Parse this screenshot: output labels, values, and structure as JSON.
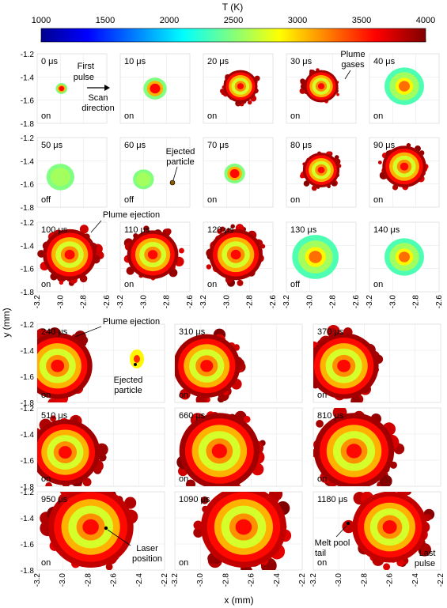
{
  "chart_data": {
    "type": "heatmap",
    "colorbar": {
      "label": "T (K)",
      "min": 1000,
      "max": 4000,
      "ticks": [
        1000,
        1500,
        2000,
        2500,
        3000,
        3500,
        4000
      ],
      "colormap": "jet"
    },
    "xlabel": "x (mm)",
    "ylabel": "y (mm)",
    "grid": true,
    "top_block": {
      "xlim": [
        -3.2,
        -2.6
      ],
      "xticks": [
        "-3.2",
        "-3.0",
        "-2.8",
        "-2.6"
      ],
      "ylim": [
        -1.8,
        -1.2
      ],
      "yticks": [
        "-1.2",
        "-1.4",
        "-1.6",
        "-1.8"
      ]
    },
    "bottom_block": {
      "xlim": [
        -3.2,
        -2.2
      ],
      "xticks": [
        "-3.2",
        "-3.0",
        "-2.8",
        "-2.6",
        "-2.4",
        "-2.2"
      ],
      "ylim": [
        -1.8,
        -1.2
      ],
      "yticks": [
        "-1.2",
        "-1.4",
        "-1.6",
        "-1.8"
      ]
    },
    "frames": [
      {
        "time": "0 μs",
        "laser": "on",
        "kind": "small",
        "cx": -2.99,
        "cy": -1.5,
        "r": 0.05,
        "peak": 3700
      },
      {
        "time": "10 μs",
        "laser": "on",
        "kind": "small",
        "cx": -2.9,
        "cy": -1.5,
        "r": 0.1,
        "peak": 3800
      },
      {
        "time": "20 μs",
        "laser": "on",
        "kind": "pool",
        "cx": -2.88,
        "cy": -1.48,
        "r": 0.14,
        "peak": 4000
      },
      {
        "time": "30 μs",
        "laser": "on",
        "kind": "pool",
        "cx": -2.9,
        "cy": -1.48,
        "r": 0.14,
        "peak": 4000
      },
      {
        "time": "40 μs",
        "laser": "on",
        "kind": "cool",
        "cx": -2.9,
        "cy": -1.48,
        "r": 0.17,
        "peak": 3500
      },
      {
        "time": "50 μs",
        "laser": "off",
        "kind": "small",
        "cx": -3.0,
        "cy": -1.54,
        "r": 0.12,
        "peak": 2600
      },
      {
        "time": "60 μs",
        "laser": "off",
        "kind": "small",
        "cx": -3.0,
        "cy": -1.56,
        "r": 0.09,
        "peak": 2600
      },
      {
        "time": "70 μs",
        "laser": "on",
        "kind": "small",
        "cx": -2.93,
        "cy": -1.51,
        "r": 0.09,
        "peak": 3800
      },
      {
        "time": "80 μs",
        "laser": "on",
        "kind": "pool",
        "cx": -2.9,
        "cy": -1.48,
        "r": 0.15,
        "peak": 4000
      },
      {
        "time": "90 μs",
        "laser": "on",
        "kind": "pool",
        "cx": -2.9,
        "cy": -1.45,
        "r": 0.18,
        "peak": 4000
      },
      {
        "time": "100 μs",
        "laser": "on",
        "kind": "pool",
        "cx": -2.92,
        "cy": -1.48,
        "r": 0.22,
        "peak": 4000
      },
      {
        "time": "110 μs",
        "laser": "on",
        "kind": "pool",
        "cx": -2.92,
        "cy": -1.48,
        "r": 0.21,
        "peak": 4000
      },
      {
        "time": "120 μs",
        "laser": "on",
        "kind": "pool",
        "cx": -2.92,
        "cy": -1.48,
        "r": 0.22,
        "peak": 4000
      },
      {
        "time": "130 μs",
        "laser": "off",
        "kind": "cool",
        "cx": -2.95,
        "cy": -1.5,
        "r": 0.2,
        "peak": 3300
      },
      {
        "time": "140 μs",
        "laser": "on",
        "kind": "cool",
        "cx": -2.9,
        "cy": -1.5,
        "r": 0.17,
        "peak": 3500
      },
      {
        "time": "240 μs",
        "laser": "on",
        "kind": "pool",
        "cx": -3.04,
        "cy": -1.52,
        "r": 0.26,
        "peak": 4000
      },
      {
        "time": "310 μs",
        "laser": "on",
        "kind": "pool",
        "cx": -2.95,
        "cy": -1.52,
        "r": 0.25,
        "peak": 4000
      },
      {
        "time": "370 μs",
        "laser": "on",
        "kind": "pool",
        "cx": -2.96,
        "cy": -1.52,
        "r": 0.26,
        "peak": 4000
      },
      {
        "time": "510 μs",
        "laser": "on",
        "kind": "pool",
        "cx": -2.98,
        "cy": -1.54,
        "r": 0.26,
        "peak": 4000
      },
      {
        "time": "660 μs",
        "laser": "on",
        "kind": "pool",
        "cx": -2.85,
        "cy": -1.53,
        "r": 0.3,
        "peak": 4000
      },
      {
        "time": "810 μs",
        "laser": "on",
        "kind": "pool",
        "cx": -2.88,
        "cy": -1.53,
        "r": 0.3,
        "peak": 4000
      },
      {
        "time": "950 μs",
        "laser": "on",
        "kind": "pool",
        "cx": -2.78,
        "cy": -1.47,
        "r": 0.32,
        "peak": 3800
      },
      {
        "time": "1090 μs",
        "laser": "on",
        "kind": "pool",
        "cx": -2.66,
        "cy": -1.47,
        "r": 0.32,
        "peak": 3800
      },
      {
        "time": "1180 μs",
        "laser": "on",
        "kind": "pool",
        "cx": -2.6,
        "cy": -1.47,
        "r": 0.28,
        "peak": 3800
      }
    ],
    "annotations": [
      {
        "frame": "0 μs",
        "text": "First pulse"
      },
      {
        "frame": "0 μs",
        "text": "Scan direction"
      },
      {
        "frame": "30 μs",
        "text": "Plume gases"
      },
      {
        "frame": "60 μs",
        "text": "Ejected particle"
      },
      {
        "frame": "100 μs",
        "text": "Plume ejection"
      },
      {
        "frame": "240 μs",
        "text": "Plume ejection"
      },
      {
        "frame": "240 μs",
        "text": "Ejected particle"
      },
      {
        "frame": "950 μs",
        "text": "Laser position"
      },
      {
        "frame": "1180 μs",
        "text": "Melt pool tail"
      },
      {
        "frame": "1180 μs",
        "text": "Last pulse"
      }
    ]
  }
}
